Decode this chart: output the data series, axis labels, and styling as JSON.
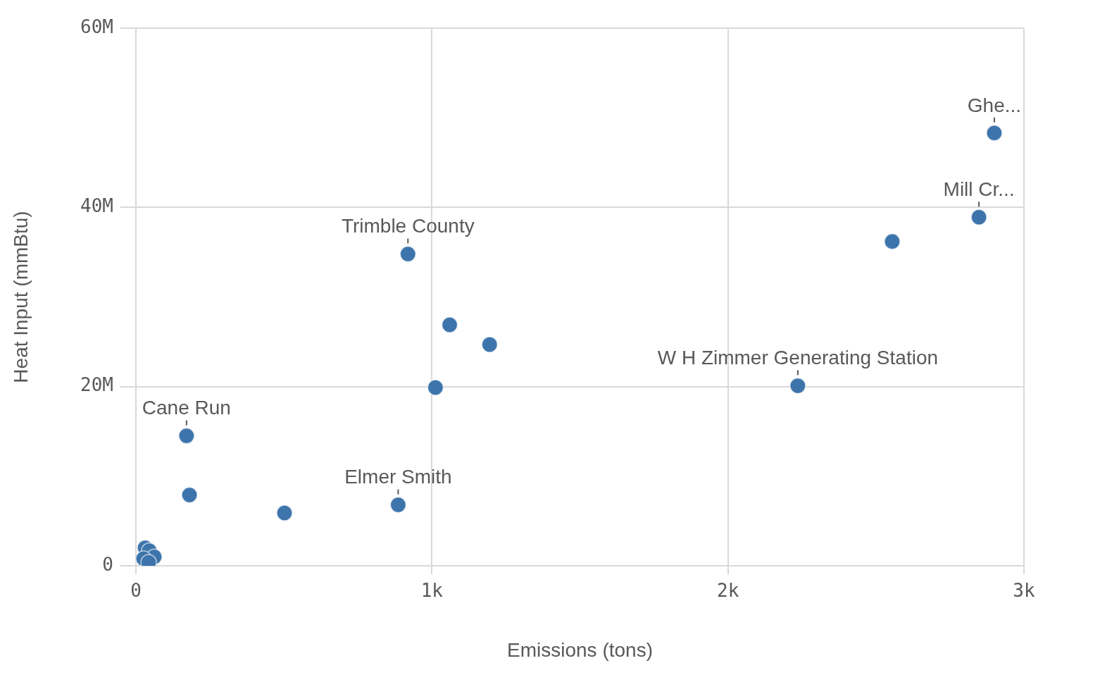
{
  "chart_data": {
    "type": "scatter",
    "xlabel": "Emissions (tons)",
    "ylabel": "Heat Input (mmBtu)",
    "xlim": [
      0,
      3000
    ],
    "ylim": [
      0,
      60000000
    ],
    "xticks": [
      0,
      {
        "value": 1000,
        "label": "1k"
      },
      {
        "value": 2000,
        "label": "2k"
      },
      {
        "value": 3000,
        "label": "3k"
      }
    ],
    "yticks": [
      0,
      {
        "value": 20000000,
        "label": "20M"
      },
      {
        "value": 40000000,
        "label": "40M"
      },
      {
        "value": 60000000,
        "label": "60M"
      }
    ],
    "grid": true,
    "legend": false,
    "marker": "circle",
    "series": [
      {
        "color": "#3d74ab",
        "x": [
          2900,
          2848,
          2555,
          2236,
          919,
          1060,
          1195,
          1012,
          171,
          181,
          502,
          886,
          31,
          45,
          62,
          26,
          43
        ],
        "values": [
          48300000,
          38900000,
          36200000,
          20100000,
          34800000,
          26900000,
          24700000,
          19900000,
          14500000,
          7900000,
          5900000,
          6800000,
          2000000,
          1700000,
          1000000,
          800000,
          400000
        ]
      }
    ],
    "annotations": [
      {
        "text": "Ghe...",
        "x": 2900,
        "y": 48300000
      },
      {
        "text": "Mill Cr...",
        "x": 2848,
        "y": 38900000
      },
      {
        "text": "W H Zimmer Generating Station",
        "x": 2236,
        "y": 20100000
      },
      {
        "text": "Trimble County",
        "x": 919,
        "y": 34800000
      },
      {
        "text": "Cane Run",
        "x": 171,
        "y": 14500000
      },
      {
        "text": "Elmer Smith",
        "x": 886,
        "y": 6800000
      }
    ]
  }
}
